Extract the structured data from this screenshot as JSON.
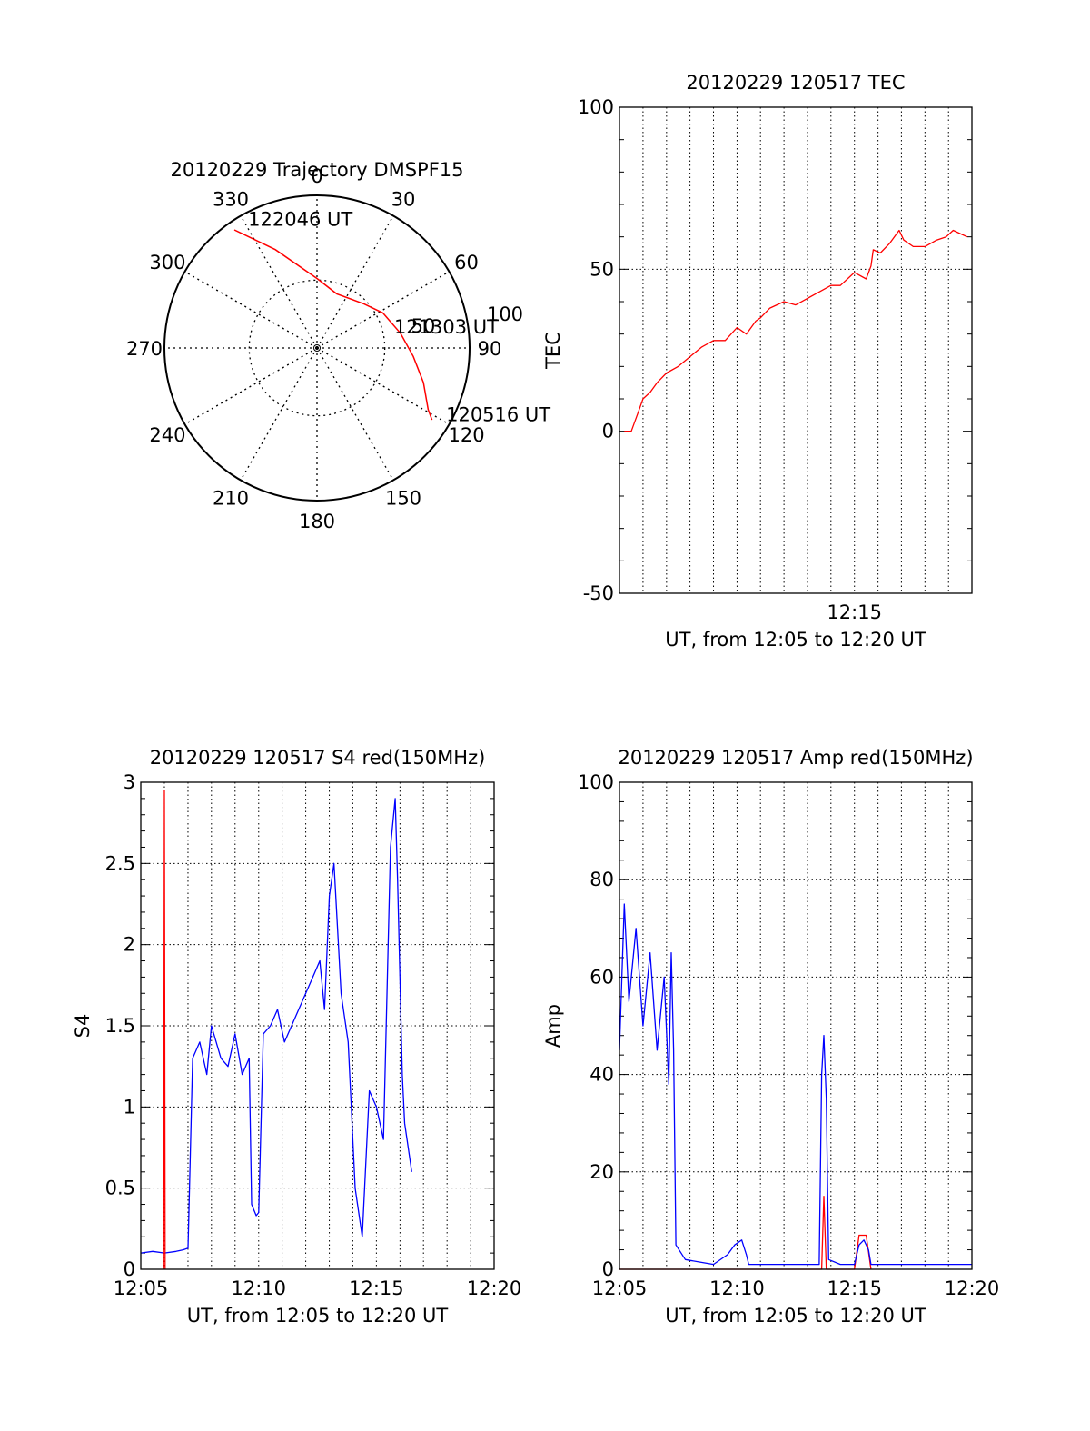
{
  "colors": {
    "red": "#ff0000",
    "blue": "#0000ff",
    "axis": "#000000",
    "grid": "#000000",
    "background": "#ffffff"
  },
  "chart_data": [
    {
      "id": "trajectory",
      "type": "polar",
      "title": "20120229 Trajectory DMSPF15",
      "azimuth_labels": [
        "0",
        "30",
        "60",
        "90",
        "120",
        "150",
        "180",
        "210",
        "240",
        "270",
        "300",
        "330"
      ],
      "azimuth_values": [
        0,
        30,
        60,
        90,
        120,
        150,
        180,
        210,
        240,
        270,
        300,
        330
      ],
      "elevation_rings": [
        {
          "elevation": 50,
          "label": "50"
        },
        {
          "elevation": 0,
          "label": "100"
        }
      ],
      "series": [
        {
          "color": "#ff0000",
          "points": [
            {
              "az": 325,
              "el": 5
            },
            {
              "az": 337,
              "el": 27
            },
            {
              "az": 0,
              "el": 49
            },
            {
              "az": 20,
              "el": 56
            },
            {
              "az": 47,
              "el": 52
            },
            {
              "az": 62,
              "el": 46
            },
            {
              "az": 80,
              "el": 40
            },
            {
              "az": 95,
              "el": 33
            },
            {
              "az": 108,
              "el": 24
            },
            {
              "az": 119,
              "el": 15
            },
            {
              "az": 122,
              "el": 10
            }
          ]
        }
      ],
      "annotations": [
        {
          "text": "122046 UT",
          "az": 331,
          "el": 4
        },
        {
          "text": "121303 UT",
          "az": 75,
          "el": 44
        },
        {
          "text": "120516 UT",
          "az": 118,
          "el": 5
        }
      ]
    },
    {
      "id": "tec",
      "type": "line",
      "title": "20120229 120517 TEC",
      "ylabel": "TEC",
      "xlabel": "UT, from 12:05 to 12:20 UT",
      "xlim": [
        12.0833,
        12.3333
      ],
      "ylim": [
        -50,
        100
      ],
      "yticks": [
        -50,
        0,
        50,
        100
      ],
      "xtick_labels": [
        {
          "x": 12.25,
          "label": "12:15"
        }
      ],
      "vgrid_x": [
        12.1,
        12.1167,
        12.1333,
        12.15,
        12.1667,
        12.1833,
        12.2,
        12.2167,
        12.2333,
        12.25,
        12.2667,
        12.2833,
        12.3,
        12.3167
      ],
      "hgrid_y": [
        50
      ],
      "grid": true,
      "series": [
        {
          "color": "#ff0000",
          "x": [
            12.0867,
            12.0917,
            12.0967,
            12.1,
            12.105,
            12.11,
            12.1167,
            12.125,
            12.1333,
            12.1417,
            12.15,
            12.1583,
            12.1667,
            12.1733,
            12.18,
            12.1833,
            12.19,
            12.2,
            12.2083,
            12.2167,
            12.225,
            12.2333,
            12.24,
            12.25,
            12.2583,
            12.2617,
            12.2633,
            12.2683,
            12.275,
            12.2817,
            12.285,
            12.2917,
            12.3,
            12.3083,
            12.315,
            12.32,
            12.325,
            12.33
          ],
          "y": [
            0,
            0,
            6,
            10,
            12,
            15,
            18,
            20,
            23,
            26,
            28,
            28,
            32,
            30,
            34,
            35,
            38,
            40,
            39,
            41,
            43,
            45,
            45,
            49,
            47,
            51,
            56,
            55,
            58,
            62,
            59,
            57,
            57,
            59,
            60,
            62,
            61,
            60
          ]
        }
      ]
    },
    {
      "id": "s4",
      "type": "line",
      "title": "20120229 120517 S4 red(150MHz)",
      "ylabel": "S4",
      "xlabel": "UT, from 12:05 to 12:20 UT",
      "xlim": [
        12.0833,
        12.3333
      ],
      "ylim": [
        0,
        3
      ],
      "yticks": [
        0,
        0.5,
        1,
        1.5,
        2,
        2.5,
        3
      ],
      "ytick_labels": [
        "0",
        "0.5",
        "1",
        "1.5",
        "2",
        "2.5",
        "3"
      ],
      "xtick_labels": [
        {
          "x": 12.0833,
          "label": "12:05"
        },
        {
          "x": 12.1667,
          "label": "12:10"
        },
        {
          "x": 12.25,
          "label": "12:15"
        },
        {
          "x": 12.3333,
          "label": "12:20"
        }
      ],
      "vgrid_x": [
        12.1,
        12.1167,
        12.1333,
        12.15,
        12.1667,
        12.1833,
        12.2,
        12.2167,
        12.2333,
        12.25,
        12.2667,
        12.2833,
        12.3,
        12.3167
      ],
      "hgrid_y": [
        0.5,
        1,
        1.5,
        2,
        2.5
      ],
      "grid": true,
      "series": [
        {
          "color": "#0000ff",
          "x": [
            12.0833,
            12.0917,
            12.1,
            12.1083,
            12.1133,
            12.1167,
            12.12,
            12.125,
            12.13,
            12.1333,
            12.14,
            12.145,
            12.15,
            12.155,
            12.16,
            12.1617,
            12.165,
            12.1667,
            12.17,
            12.175,
            12.18,
            12.185,
            12.19,
            12.2,
            12.205,
            12.21,
            12.2133,
            12.2167,
            12.22,
            12.225,
            12.23,
            12.235,
            12.24,
            12.245,
            12.25,
            12.255,
            12.26,
            12.2633,
            12.265,
            12.2683,
            12.27,
            12.275
          ],
          "y": [
            0.1,
            0.11,
            0.1,
            0.11,
            0.12,
            0.13,
            1.3,
            1.4,
            1.2,
            1.5,
            1.3,
            1.25,
            1.45,
            1.2,
            1.3,
            0.4,
            0.33,
            0.35,
            1.45,
            1.5,
            1.6,
            1.4,
            1.5,
            1.7,
            1.8,
            1.9,
            1.6,
            2.3,
            2.5,
            1.7,
            1.4,
            0.5,
            0.2,
            1.1,
            1.0,
            0.8,
            2.6,
            2.9,
            2.4,
            1.2,
            0.9,
            0.6
          ]
        },
        {
          "color": "#ff0000",
          "x": [
            12.0995,
            12.1,
            12.1005
          ],
          "y": [
            0,
            2.95,
            0
          ]
        }
      ]
    },
    {
      "id": "amp",
      "type": "line",
      "title": "20120229 120517 Amp red(150MHz)",
      "ylabel": "Amp",
      "xlabel": "UT, from 12:05 to 12:20 UT",
      "xlim": [
        12.0833,
        12.3333
      ],
      "ylim": [
        0,
        100
      ],
      "yticks": [
        0,
        20,
        40,
        60,
        80,
        100
      ],
      "xtick_labels": [
        {
          "x": 12.0833,
          "label": "12:05"
        },
        {
          "x": 12.1667,
          "label": "12:10"
        },
        {
          "x": 12.25,
          "label": "12:15"
        },
        {
          "x": 12.3333,
          "label": "12:20"
        }
      ],
      "vgrid_x": [
        12.1,
        12.1167,
        12.1333,
        12.15,
        12.1667,
        12.1833,
        12.2,
        12.2167,
        12.2333,
        12.25,
        12.2667,
        12.2833,
        12.3,
        12.3167
      ],
      "hgrid_y": [
        20,
        40,
        60,
        80
      ],
      "grid": true,
      "series": [
        {
          "color": "#ff0000",
          "x": [
            12.0833,
            12.12,
            12.2267,
            12.2283,
            12.23,
            12.25,
            12.2533,
            12.2583,
            12.2617
          ],
          "y": [
            0,
            0,
            0,
            15,
            0,
            0,
            7,
            7,
            0
          ]
        },
        {
          "color": "#0000ff",
          "x": [
            12.0833,
            12.0867,
            12.09,
            12.095,
            12.1,
            12.105,
            12.11,
            12.115,
            12.1183,
            12.12,
            12.1217,
            12.1233,
            12.13,
            12.14,
            12.15,
            12.16,
            12.165,
            12.17,
            12.1733,
            12.175,
            12.18,
            12.2,
            12.22,
            12.225,
            12.2267,
            12.2283,
            12.23,
            12.2317,
            12.24,
            12.25,
            12.2533,
            12.2567,
            12.26,
            12.2617,
            12.28,
            12.3,
            12.3333
          ],
          "y": [
            45,
            75,
            55,
            70,
            50,
            65,
            45,
            60,
            38,
            65,
            45,
            5,
            2,
            1.5,
            1,
            3,
            5,
            6,
            3,
            1,
            1,
            1,
            1,
            1,
            40,
            48,
            35,
            2,
            1,
            1,
            5,
            6,
            4,
            1,
            1,
            1,
            1
          ]
        }
      ]
    }
  ]
}
